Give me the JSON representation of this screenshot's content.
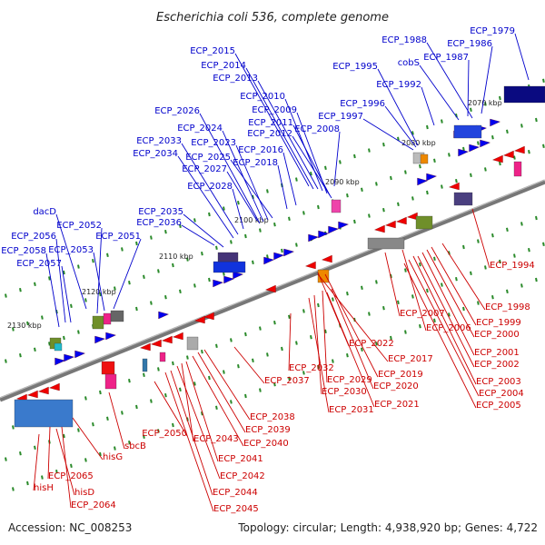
{
  "title": "Escherichia coli 536, complete genome",
  "footer": {
    "accession": "Accession: NC_008253",
    "topology": "Topology: circular; Length: 4,938,920 bp; Genes: 4,722"
  },
  "colors": {
    "forward_strand_label": "#0000cc",
    "reverse_strand_label": "#cc0000",
    "forward_gene": "#0000ee",
    "reverse_gene": "#ee0000",
    "backbone": "#777777",
    "tick": "#2a8a2a"
  },
  "scale_ticks": [
    "2070 kbp",
    "2080 kbp",
    "2090 kbp",
    "2100 kbp",
    "2110 kbp",
    "2120 kbp",
    "2130 kbp"
  ],
  "forward_labels": [
    "ECP_1979",
    "ECP_1988",
    "ECP_1986",
    "cobS",
    "ECP_1987",
    "ECP_1995",
    "ECP_1992",
    "ECP_1996",
    "ECP_1997",
    "ECP_2015",
    "ECP_2014",
    "ECP_2013",
    "ECP_2010",
    "ECP_2009",
    "ECP_2011",
    "ECP_2012",
    "ECP_2008",
    "ECP_2026",
    "ECP_2024",
    "ECP_2023",
    "ECP_2033",
    "ECP_2025",
    "ECP_2016",
    "ECP_2034",
    "ECP_2027",
    "ECP_2018",
    "ECP_2028",
    "dacD",
    "ECP_2035",
    "ECP_2036",
    "ECP_2056",
    "ECP_2052",
    "ECP_2051",
    "ECP_2058",
    "ECP_2053",
    "ECP_2057"
  ],
  "reverse_labels": [
    "ECP_1994",
    "ECP_1998",
    "ECP_2007",
    "ECP_1999",
    "ECP_2006",
    "ECP_2000",
    "ECP_2022",
    "ECP_2001",
    "ECP_2017",
    "ECP_2002",
    "ECP_2019",
    "ECP_2032",
    "ECP_2003",
    "ECP_2037",
    "ECP_2029",
    "ECP_2020",
    "ECP_2004",
    "ECP_2030",
    "ECP_2021",
    "ECP_2005",
    "ECP_2031",
    "ECP_2038",
    "ECP_2039",
    "ECP_2050",
    "ECP_2043",
    "ECP_2040",
    "sbcB",
    "hisG",
    "ECP_2041",
    "ECP_2042",
    "ECP_2065",
    "hisH",
    "ECP_2044",
    "hisD",
    "ECP_2064",
    "ECP_2045"
  ]
}
